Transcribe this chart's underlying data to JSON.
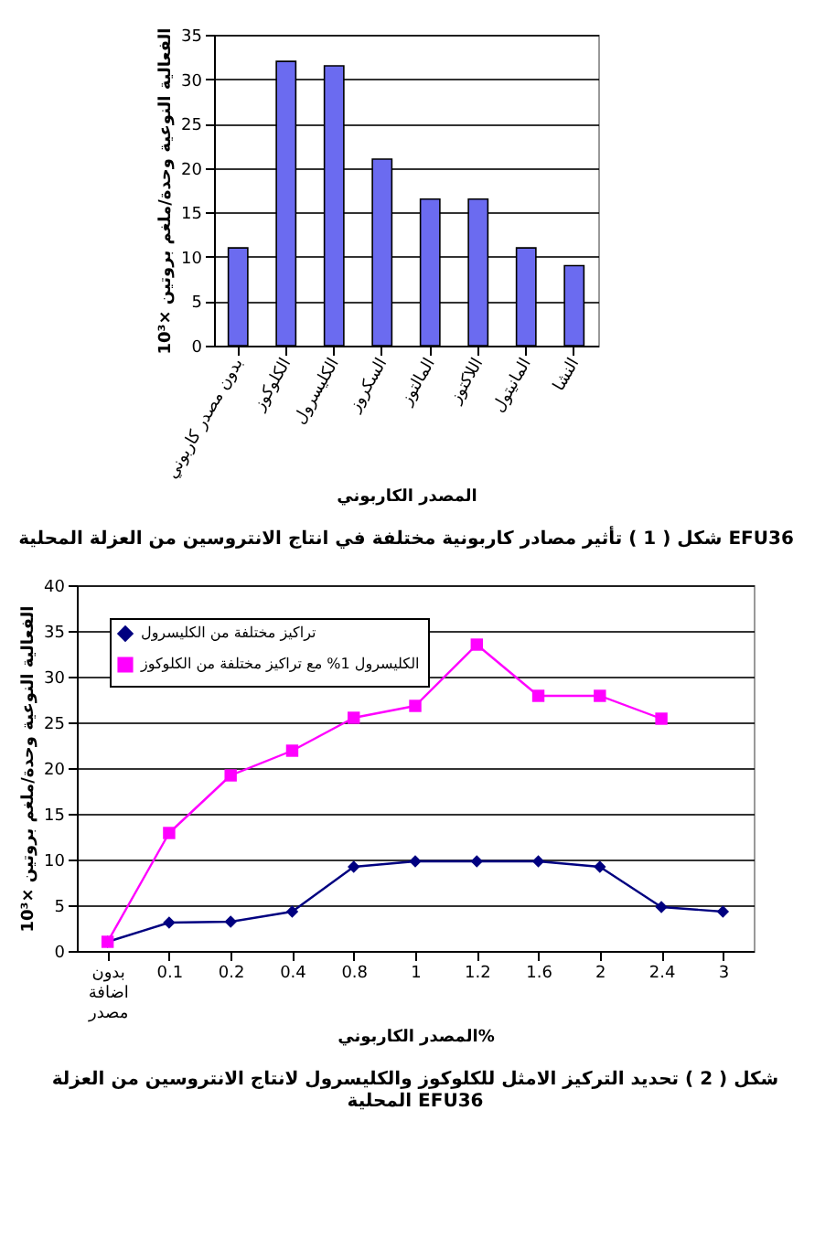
{
  "chart_data": [
    {
      "type": "bar",
      "title": "شكل ( 1 ) تأثير مصادر كاربونية مختلفة في انتاج الانتروسين من العزلة المحلية EFU36",
      "xlabel": "المصدر الكاربوني",
      "ylabel": "الفعالية النوعية وحدة/ملغم بروتين ×10³",
      "categories": [
        "بدون مصدر كاربوني",
        "الكلوكوز",
        "الكليسرول",
        "السكروز",
        "المالتوز",
        "اللاكتوز",
        "المانيتول",
        "النشا"
      ],
      "values": [
        11,
        32,
        31.5,
        21,
        16.5,
        16.5,
        11,
        9
      ],
      "color": "#6b6bf0",
      "ylim": [
        0,
        35
      ],
      "yticks": [
        0,
        5,
        10,
        15,
        20,
        25,
        30,
        35
      ],
      "grid": "y"
    },
    {
      "type": "line",
      "title": "شكل ( 2 ) تحديد التركيز الامثل للكلوكوز والكليسرول لانتاج الانتروسين من العزلة المحلية EFU36",
      "xlabel": "المصدر الكاربوني%",
      "ylabel": "الفعالية النوعية وحدة/ملغم بروتين ×10³",
      "categories": [
        "بدون اضافة مصدر",
        "0.1",
        "0.2",
        "0.4",
        "0.8",
        "1",
        "1.2",
        "1.6",
        "2",
        "2.4",
        "3"
      ],
      "series": [
        {
          "name": "تراكيز مختلفة من الكليسرول",
          "color": "#000080",
          "marker": "diamond",
          "values": [
            1,
            3.1,
            3.2,
            4.3,
            9.2,
            9.8,
            9.8,
            9.8,
            9.2,
            4.8,
            4.3
          ]
        },
        {
          "name": "الكليسرول 1% مع تراكيز مختلفة من الكلوكوز",
          "color": "#ff00ff",
          "marker": "square",
          "values": [
            1,
            12.9,
            19.2,
            21.9,
            25.5,
            26.8,
            33.5,
            27.9,
            27.9,
            25.4,
            null
          ]
        }
      ],
      "ylim": [
        0,
        40
      ],
      "yticks": [
        0,
        5,
        10,
        15,
        20,
        25,
        30,
        35,
        40
      ],
      "grid": "y",
      "legend": "top left"
    }
  ]
}
